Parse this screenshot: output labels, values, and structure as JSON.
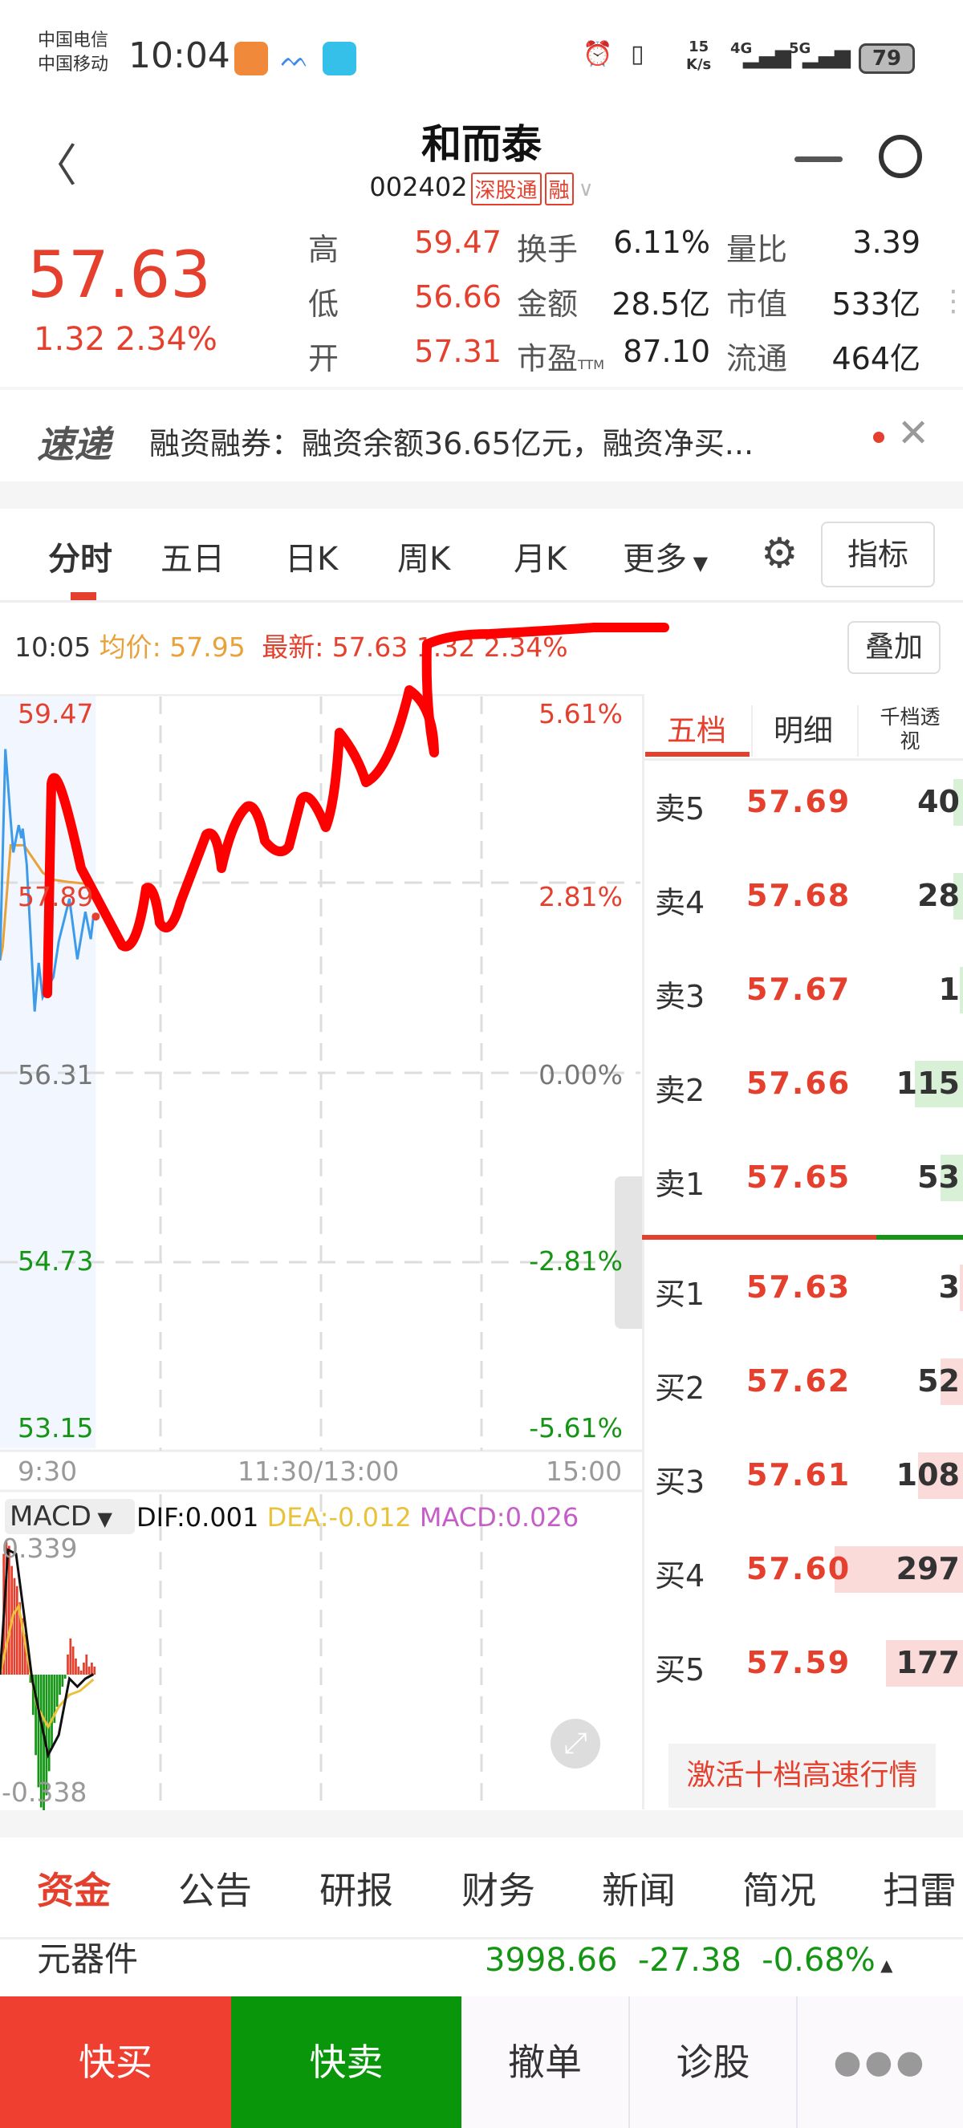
{
  "status_bar": {
    "carrier1": "中国电信",
    "carrier2": "中国移动",
    "time": "10:04",
    "net_speed_value": "15",
    "net_speed_unit": "K/s",
    "net1": "4G",
    "net2": "5G",
    "battery": "79"
  },
  "header": {
    "stock_name": "和而泰",
    "stock_code": "002402",
    "badges": [
      "深股通",
      "融"
    ]
  },
  "quote": {
    "price": "57.63",
    "change": "1.32",
    "change_pct": "2.34%",
    "stats": [
      {
        "label": "高",
        "value": "59.47",
        "label2": "换手",
        "value2": "6.11%",
        "label3": "量比",
        "value3": "3.39"
      },
      {
        "label": "低",
        "value": "56.66",
        "label2": "金额",
        "value2": "28.5亿",
        "label3": "市值",
        "value3": "533亿"
      },
      {
        "label": "开",
        "value": "57.31",
        "label2": "市盈",
        "label2_sub": "TTM",
        "value2": "87.10",
        "label3": "流通",
        "value3": "464亿"
      }
    ]
  },
  "news": {
    "logo": "速递",
    "text": "融资融券：融资余额36.65亿元，融资净买..."
  },
  "chart_tabs": {
    "items": [
      "分时",
      "五日",
      "日K",
      "周K",
      "月K",
      "更多"
    ],
    "active": 0,
    "indicator_button": "指标"
  },
  "info_row": {
    "time": "10:05",
    "avg_label": "均价: 57.95",
    "latest_label": "最新: 57.63",
    "latest_change": "1.32 2.34%",
    "overlay_button": "叠加"
  },
  "intraday": {
    "price_labels": [
      "59.47",
      "57.89",
      "56.31",
      "54.73",
      "53.15"
    ],
    "pct_labels": [
      "5.61%",
      "2.81%",
      "0.00%",
      "-2.81%",
      "-5.61%"
    ],
    "time_labels": [
      "9:30",
      "11:30/13:00",
      "15:00"
    ],
    "range": [
      53.15,
      59.47
    ],
    "minutes_total": 240,
    "prices": [
      [
        0,
        57.26
      ],
      [
        2,
        59.04
      ],
      [
        4,
        58.44
      ],
      [
        5,
        58.17
      ],
      [
        7,
        58.4
      ],
      [
        8,
        58.29
      ],
      [
        8.5,
        58.37
      ],
      [
        10,
        58.07
      ],
      [
        13,
        56.83
      ],
      [
        14.5,
        57.24
      ],
      [
        16,
        56.95
      ],
      [
        20,
        57.12
      ],
      [
        22,
        57.42
      ],
      [
        26,
        57.78
      ],
      [
        29,
        57.27
      ],
      [
        32,
        57.67
      ],
      [
        34,
        57.44
      ],
      [
        35,
        57.63
      ]
    ],
    "avg_prices": [
      [
        0,
        57.26
      ],
      [
        1,
        57.37
      ],
      [
        4,
        58.23
      ],
      [
        9,
        58.23
      ],
      [
        16,
        58.0
      ],
      [
        20,
        57.94
      ],
      [
        26,
        57.92
      ],
      [
        35,
        57.9
      ]
    ],
    "colors": {
      "price": "#3d9be9",
      "avg": "#e8a23a",
      "up": "#e5402e",
      "down": "#149514"
    }
  },
  "macd": {
    "selector": "MACD",
    "dif": "DIF:0.001",
    "dea": "DEA:-0.012",
    "macd": "MACD:0.026",
    "max_label": "0.339",
    "min_label": "-0.338",
    "range": [
      -0.338,
      0.339
    ],
    "histogram": [
      0.05,
      0.3,
      0.33,
      0.32,
      0.27,
      0.24,
      0.22,
      0.18,
      0.14,
      0.1,
      0.05,
      -0.02,
      -0.1,
      -0.2,
      -0.28,
      -0.33,
      -0.338,
      -0.3,
      -0.24,
      -0.18,
      -0.12,
      -0.08,
      -0.05,
      -0.03,
      -0.01,
      0.05,
      0.09,
      0.07,
      0.04,
      0.02,
      0.01,
      0.03,
      0.05,
      0.02,
      0.03,
      0.02
    ],
    "dif_line": [
      [
        0,
        0
      ],
      [
        3,
        0.31
      ],
      [
        6,
        0.3
      ],
      [
        9,
        0.15
      ],
      [
        12,
        -0.01
      ],
      [
        18,
        -0.2
      ],
      [
        22,
        -0.15
      ],
      [
        26,
        -0.01
      ],
      [
        29,
        -0.03
      ],
      [
        32,
        -0.01
      ],
      [
        35,
        0.001
      ]
    ],
    "dea_line": [
      [
        0,
        0
      ],
      [
        5,
        0.15
      ],
      [
        7,
        0.17
      ],
      [
        11,
        0.02
      ],
      [
        14,
        -0.08
      ],
      [
        18,
        -0.13
      ],
      [
        22,
        -0.08
      ],
      [
        26,
        -0.05
      ],
      [
        30,
        -0.04
      ],
      [
        35,
        -0.012
      ]
    ]
  },
  "order_book": {
    "tabs": [
      "五档",
      "明细",
      "千档透视"
    ],
    "active": 0,
    "sell": [
      {
        "label": "卖5",
        "price": "57.69",
        "volume": "40",
        "fill": 0.03
      },
      {
        "label": "卖4",
        "price": "57.68",
        "volume": "28",
        "fill": 0.03
      },
      {
        "label": "卖3",
        "price": "57.67",
        "volume": "1",
        "fill": 0.005
      },
      {
        "label": "卖2",
        "price": "57.66",
        "volume": "115",
        "fill": 0.15
      },
      {
        "label": "卖1",
        "price": "57.65",
        "volume": "53",
        "fill": 0.07
      }
    ],
    "buy": [
      {
        "label": "买1",
        "price": "57.63",
        "volume": "3",
        "fill": 0.005
      },
      {
        "label": "买2",
        "price": "57.62",
        "volume": "52",
        "fill": 0.07
      },
      {
        "label": "买3",
        "price": "57.61",
        "volume": "108",
        "fill": 0.14
      },
      {
        "label": "买4",
        "price": "57.60",
        "volume": "297",
        "fill": 0.4
      },
      {
        "label": "买5",
        "price": "57.59",
        "volume": "177",
        "fill": 0.24
      }
    ],
    "buy_sell_ratio": 0.73,
    "activate_button": "激活十档高速行情"
  },
  "bottom_tabs": {
    "items": [
      "资金",
      "公告",
      "研报",
      "财务",
      "新闻",
      "简况",
      "扫雷"
    ],
    "active": 0
  },
  "sector": {
    "name": "元器件",
    "value": "3998.66",
    "change": "-27.38",
    "change_pct": "-0.68%"
  },
  "actions": {
    "buy": "快买",
    "sell": "快卖",
    "cancel": "撤单",
    "diagnose": "诊股"
  }
}
